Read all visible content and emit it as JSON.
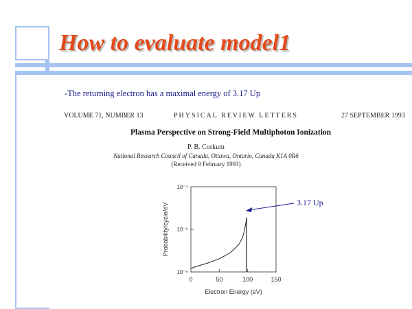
{
  "slide": {
    "title": "How to evaluate model1",
    "bullet": "-The returning electron has a maximal energy of 3.17 Up",
    "annotation": "3.17 Up",
    "accent_color": "#e34a1b",
    "decor_color": "#a7c3f3"
  },
  "paper": {
    "volume": "VOLUME 71, NUMBER 13",
    "journal": "PHYSICAL REVIEW LETTERS",
    "date": "27 SEPTEMBER 1993",
    "title": "Plasma Perspective on Strong-Field Multiphoton Ionization",
    "author": "P. B. Corkum",
    "affiliation": "National Research Council of Canada, Ottawa, Ontario, Canada K1A 0R6",
    "received": "(Received 9 February 1993)"
  },
  "chart_data": {
    "type": "line",
    "xlabel": "Electron Energy (eV)",
    "ylabel": "Probability/cycle/eV",
    "x_ticks": [
      "0",
      "50",
      "100",
      "150"
    ],
    "y_ticks": [
      "10⁻⁴",
      "10⁻⁵",
      "10⁻⁶"
    ],
    "xlim": [
      0,
      150
    ],
    "ylim_log10": [
      -6,
      -4
    ],
    "log_y": true,
    "series": [
      {
        "x": [
          0,
          10,
          20,
          30,
          40,
          50,
          60,
          70,
          80,
          85,
          90,
          93,
          95,
          97,
          98
        ],
        "y_log10": [
          -5.92,
          -5.87,
          -5.83,
          -5.79,
          -5.74,
          -5.69,
          -5.62,
          -5.54,
          -5.42,
          -5.34,
          -5.22,
          -5.1,
          -4.98,
          -4.84,
          -4.72
        ]
      }
    ],
    "cutoff_x": 98
  }
}
